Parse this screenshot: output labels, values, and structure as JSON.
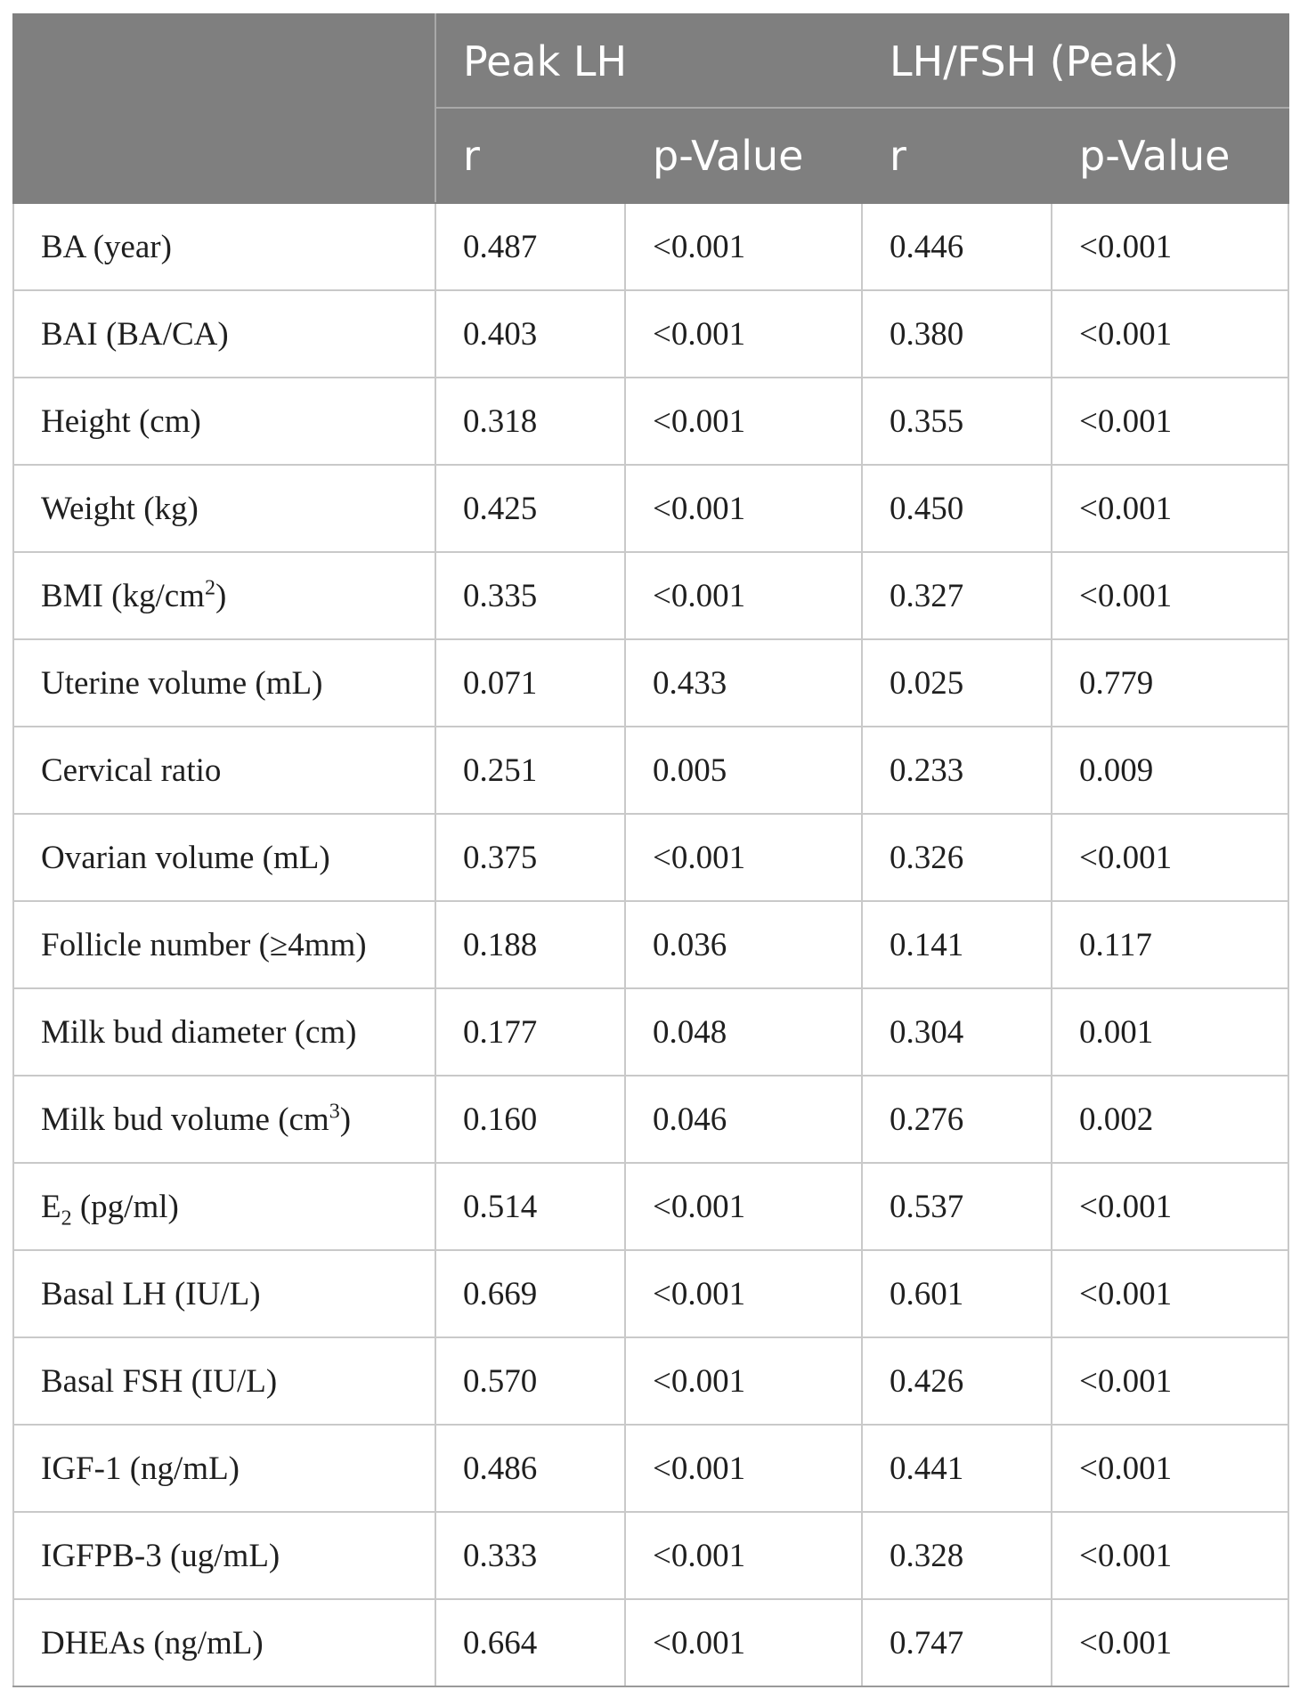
{
  "header": {
    "group1": "Peak LH",
    "group2": "LH/FSH (Peak)",
    "sub_r": "r",
    "sub_p": "p-Value"
  },
  "rows": [
    {
      "label": "BA (year)",
      "lh_r": "0.487",
      "lh_p": "<0.001",
      "ratio_r": "0.446",
      "ratio_p": "<0.001"
    },
    {
      "label": "BAI (BA/CA)",
      "lh_r": "0.403",
      "lh_p": "<0.001",
      "ratio_r": "0.380",
      "ratio_p": "<0.001"
    },
    {
      "label": "Height (cm)",
      "lh_r": "0.318",
      "lh_p": "<0.001",
      "ratio_r": "0.355",
      "ratio_p": "<0.001"
    },
    {
      "label": "Weight (kg)",
      "lh_r": "0.425",
      "lh_p": "<0.001",
      "ratio_r": "0.450",
      "ratio_p": "<0.001"
    },
    {
      "label": "BMI (kg/cm",
      "label_sup": "2",
      "label_tail": ")",
      "lh_r": "0.335",
      "lh_p": "<0.001",
      "ratio_r": "0.327",
      "ratio_p": "<0.001"
    },
    {
      "label": "Uterine volume (mL)",
      "lh_r": "0.071",
      "lh_p": "0.433",
      "ratio_r": "0.025",
      "ratio_p": "0.779"
    },
    {
      "label": "Cervical ratio",
      "lh_r": "0.251",
      "lh_p": "0.005",
      "ratio_r": "0.233",
      "ratio_p": "0.009"
    },
    {
      "label": "Ovarian volume (mL)",
      "lh_r": "0.375",
      "lh_p": "<0.001",
      "ratio_r": "0.326",
      "ratio_p": "<0.001"
    },
    {
      "label": "Follicle number (≥4mm)",
      "lh_r": "0.188",
      "lh_p": "0.036",
      "ratio_r": "0.141",
      "ratio_p": "0.117"
    },
    {
      "label": "Milk bud diameter (cm)",
      "lh_r": "0.177",
      "lh_p": "0.048",
      "ratio_r": "0.304",
      "ratio_p": "0.001"
    },
    {
      "label": "Milk bud volume (cm",
      "label_sup": "3",
      "label_tail": ")",
      "lh_r": "0.160",
      "lh_p": "0.046",
      "ratio_r": "0.276",
      "ratio_p": "0.002"
    },
    {
      "label": "E",
      "label_sub": "2",
      "label_tail": " (pg/ml)",
      "lh_r": "0.514",
      "lh_p": "<0.001",
      "ratio_r": "0.537",
      "ratio_p": "<0.001"
    },
    {
      "label": "Basal LH (IU/L)",
      "lh_r": "0.669",
      "lh_p": "<0.001",
      "ratio_r": "0.601",
      "ratio_p": "<0.001"
    },
    {
      "label": "Basal FSH (IU/L)",
      "lh_r": "0.570",
      "lh_p": "<0.001",
      "ratio_r": "0.426",
      "ratio_p": "<0.001"
    },
    {
      "label": "IGF-1 (ng/mL)",
      "lh_r": "0.486",
      "lh_p": "<0.001",
      "ratio_r": "0.441",
      "ratio_p": "<0.001"
    },
    {
      "label": "IGFPB-3 (ug/mL)",
      "lh_r": "0.333",
      "lh_p": "<0.001",
      "ratio_r": "0.328",
      "ratio_p": "<0.001"
    },
    {
      "label": "DHEAs (ng/mL)",
      "lh_r": "0.664",
      "lh_p": "<0.001",
      "ratio_r": "0.747",
      "ratio_p": "<0.001"
    }
  ]
}
